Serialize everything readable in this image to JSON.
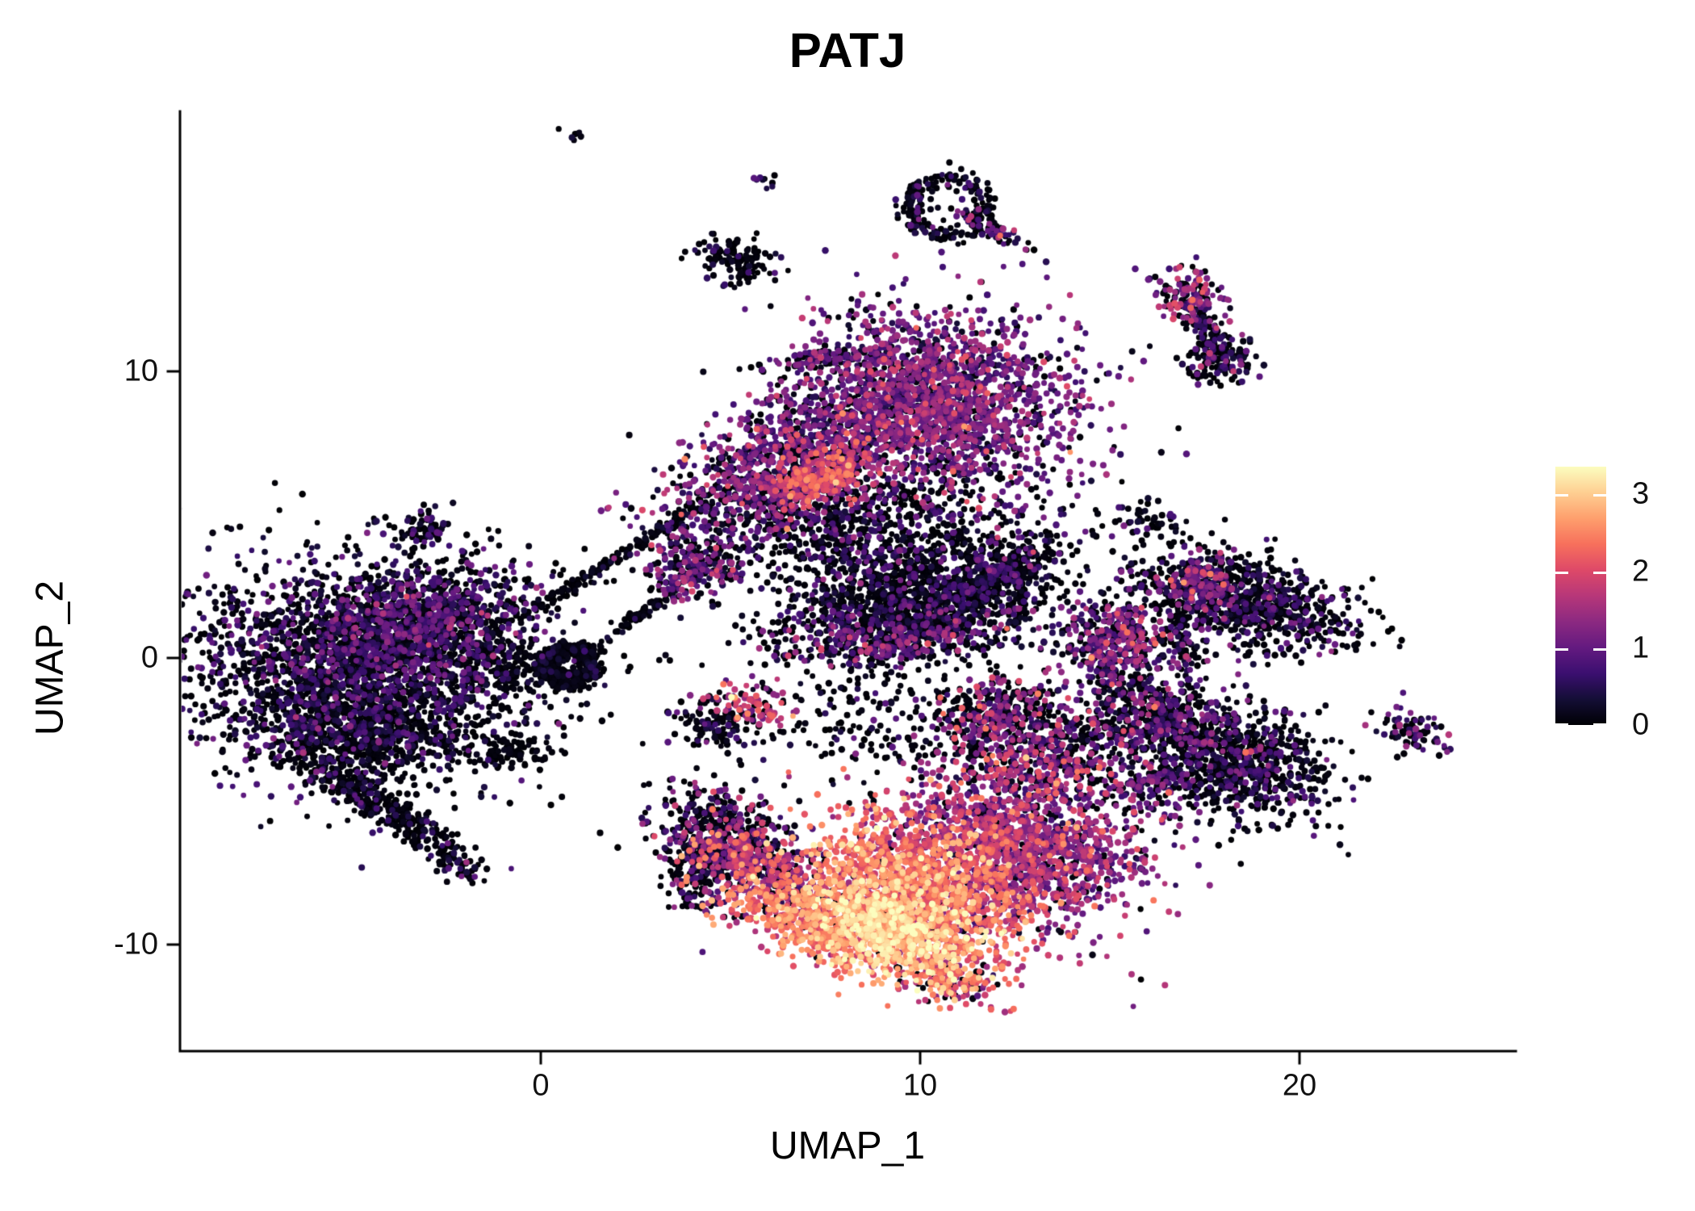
{
  "title": "PATJ",
  "chart_data": {
    "type": "scatter",
    "title": "PATJ",
    "xlabel": "UMAP_1",
    "ylabel": "UMAP_2",
    "x_range": [
      -9.5,
      25.7
    ],
    "y_range": [
      -13.7,
      19.1
    ],
    "x_ticks": [
      0,
      10,
      20
    ],
    "y_ticks": [
      -10,
      0,
      10
    ],
    "grid": false,
    "legend_position": "right",
    "point_radius_px": 3.8,
    "colorbar": {
      "label_values": [
        0,
        1,
        2,
        3
      ],
      "vmax": 3.36,
      "colormap": "magma",
      "stops": [
        "#000004",
        "#140e36",
        "#3b0f70",
        "#641a80",
        "#8c2981",
        "#b73779",
        "#de4968",
        "#f7705c",
        "#fe9f6d",
        "#fecf92",
        "#fcfdbf"
      ]
    },
    "clusters": [
      {
        "name": "left-main",
        "cx": -4.6,
        "cy": -0.3,
        "rx": 2.3,
        "ry": 1.75,
        "rot": -12,
        "n": 2500,
        "zero": 0.55,
        "mean": 0.5,
        "sd": 0.4
      },
      {
        "name": "left-upper",
        "cx": -3.3,
        "cy": 1.3,
        "rx": 1.5,
        "ry": 0.9,
        "rot": 15,
        "n": 800,
        "zero": 0.38,
        "mean": 0.65,
        "sd": 0.45
      },
      {
        "name": "left-lower-bulge",
        "cx": -4.8,
        "cy": -2.6,
        "rx": 1.4,
        "ry": 0.8,
        "rot": -10,
        "n": 550,
        "zero": 0.68,
        "mean": 0.3,
        "sd": 0.35
      },
      {
        "name": "left-tail",
        "cx": -4.4,
        "cy": -5.0,
        "rx": 1.5,
        "ry": 0.32,
        "rot": -40,
        "n": 340,
        "zero": 0.72,
        "mean": 0.3,
        "sd": 0.35
      },
      {
        "name": "left-tail-tip",
        "cx": -2.3,
        "cy": -7.2,
        "rx": 0.45,
        "ry": 0.25,
        "rot": -40,
        "n": 55,
        "zero": 0.6,
        "mean": 0.55,
        "sd": 0.5
      },
      {
        "name": "left-island-up",
        "cx": -3.1,
        "cy": 4.5,
        "rx": 0.42,
        "ry": 0.3,
        "rot": 20,
        "n": 70,
        "zero": 0.55,
        "mean": 0.5,
        "sd": 0.4
      },
      {
        "name": "ring-right",
        "shape": "ring",
        "cx": 0.75,
        "cy": -0.25,
        "ring_r": 0.6,
        "ring_sd": 0.16,
        "n": 400,
        "zero": 0.85,
        "mean": 0.15,
        "sd": 0.2
      },
      {
        "name": "bridge-dots",
        "cx": -0.7,
        "cy": -0.3,
        "rx": 0.6,
        "ry": 0.5,
        "rot": 0,
        "n": 150,
        "zero": 0.8,
        "mean": 0.2,
        "sd": 0.25
      },
      {
        "name": "island-below",
        "cx": -0.9,
        "cy": -3.3,
        "rx": 0.55,
        "ry": 0.26,
        "rot": 10,
        "n": 85,
        "zero": 0.85,
        "mean": 0.12,
        "sd": 0.15
      },
      {
        "name": "streak-upper",
        "cx": 1.3,
        "cy": 2.9,
        "rx": 1.7,
        "ry": 0.1,
        "rot": 39,
        "n": 140,
        "zero": 0.88,
        "mean": 0.15,
        "sd": 0.2
      },
      {
        "name": "streak-lower",
        "cx": 2.6,
        "cy": 1.5,
        "rx": 0.75,
        "ry": 0.1,
        "rot": 42,
        "n": 65,
        "zero": 0.88,
        "mean": 0.15,
        "sd": 0.2
      },
      {
        "name": "streak-join",
        "cx": 3.6,
        "cy": 4.9,
        "rx": 0.7,
        "ry": 0.12,
        "rot": 45,
        "n": 55,
        "zero": 0.8,
        "mean": 0.3,
        "sd": 0.3
      },
      {
        "name": "bridge-cluster",
        "cx": 3.9,
        "cy": 3.1,
        "rx": 0.65,
        "ry": 0.5,
        "rot": 20,
        "n": 220,
        "zero": 0.3,
        "mean": 0.9,
        "sd": 0.5
      },
      {
        "name": "top-main",
        "cx": 10.3,
        "cy": 8.9,
        "rx": 1.85,
        "ry": 1.55,
        "rot": -15,
        "n": 2100,
        "zero": 0.17,
        "mean": 1.05,
        "sd": 0.45
      },
      {
        "name": "top-left-lobe",
        "cx": 6.3,
        "cy": 6.6,
        "rx": 1.7,
        "ry": 1.0,
        "rot": 33,
        "n": 1000,
        "zero": 0.25,
        "mean": 1.0,
        "sd": 0.5
      },
      {
        "name": "top-pink-patch",
        "cx": 7.4,
        "cy": 6.3,
        "rx": 0.75,
        "ry": 0.45,
        "rot": 25,
        "n": 240,
        "zero": 0.08,
        "mean": 1.9,
        "sd": 0.4
      },
      {
        "name": "top-antenna",
        "cx": 7.4,
        "cy": 10.35,
        "rx": 0.8,
        "ry": 0.17,
        "rot": 3,
        "n": 100,
        "zero": 0.45,
        "mean": 0.75,
        "sd": 0.5
      },
      {
        "name": "top-under-scatter",
        "cx": 8.3,
        "cy": 4.7,
        "rx": 2.1,
        "ry": 1.0,
        "rot": 8,
        "n": 650,
        "zero": 0.55,
        "mean": 0.5,
        "sd": 0.45
      },
      {
        "name": "center-dark",
        "cx": 9.9,
        "cy": 2.2,
        "rx": 1.8,
        "ry": 1.05,
        "rot": 10,
        "n": 1400,
        "zero": 0.62,
        "mean": 0.38,
        "sd": 0.4
      },
      {
        "name": "center-wedge",
        "cx": 12.2,
        "cy": 3.0,
        "rx": 0.85,
        "ry": 0.4,
        "rot": 35,
        "n": 240,
        "zero": 0.6,
        "mean": 0.45,
        "sd": 0.4
      },
      {
        "name": "center-bottom-rim",
        "cx": 9.4,
        "cy": 0.7,
        "rx": 1.7,
        "ry": 0.45,
        "rot": 8,
        "n": 420,
        "zero": 0.32,
        "mean": 0.85,
        "sd": 0.5
      },
      {
        "name": "top-arc",
        "shape": "ring",
        "cx": 10.75,
        "cy": 15.75,
        "ring_r": 1.0,
        "ring_sd": 0.2,
        "n": 220,
        "zero": 0.7,
        "mean": 0.35,
        "sd": 0.4
      },
      {
        "name": "top-arc-tail",
        "cx": 12.0,
        "cy": 14.9,
        "rx": 0.7,
        "ry": 0.15,
        "rot": -33,
        "n": 65,
        "zero": 0.55,
        "mean": 0.7,
        "sd": 0.5
      },
      {
        "name": "island-5-14",
        "cx": 5.1,
        "cy": 13.9,
        "rx": 0.55,
        "ry": 0.38,
        "rot": -15,
        "n": 120,
        "zero": 0.72,
        "mean": 0.3,
        "sd": 0.35
      },
      {
        "name": "speck-top-a",
        "cx": 5.9,
        "cy": 16.7,
        "rx": 0.16,
        "ry": 0.2,
        "rot": 0,
        "n": 10,
        "zero": 0.5,
        "mean": 0.5,
        "sd": 0.4
      },
      {
        "name": "speck-top-b",
        "cx": 0.85,
        "cy": 18.3,
        "rx": 0.14,
        "ry": 0.14,
        "rot": 0,
        "n": 7,
        "zero": 0.6,
        "mean": 0.4,
        "sd": 0.3
      },
      {
        "name": "diag-island-top",
        "cx": 17.1,
        "cy": 12.6,
        "rx": 0.52,
        "ry": 0.45,
        "rot": -30,
        "n": 140,
        "zero": 0.28,
        "mean": 1.3,
        "sd": 0.5
      },
      {
        "name": "diag-island-mid",
        "cx": 17.6,
        "cy": 11.4,
        "rx": 0.7,
        "ry": 0.18,
        "rot": -58,
        "n": 100,
        "zero": 0.68,
        "mean": 0.4,
        "sd": 0.4
      },
      {
        "name": "diag-island-bottom",
        "cx": 17.9,
        "cy": 10.4,
        "rx": 0.48,
        "ry": 0.42,
        "rot": -30,
        "n": 130,
        "zero": 0.6,
        "mean": 0.55,
        "sd": 0.5
      },
      {
        "name": "right-top-cluster",
        "cx": 18.7,
        "cy": 1.9,
        "rx": 1.5,
        "ry": 0.8,
        "rot": -20,
        "n": 850,
        "zero": 0.58,
        "mean": 0.45,
        "sd": 0.45
      },
      {
        "name": "right-top-left-edge",
        "cx": 17.4,
        "cy": 2.6,
        "rx": 0.5,
        "ry": 0.55,
        "rot": 0,
        "n": 170,
        "zero": 0.3,
        "mean": 1.1,
        "sd": 0.5
      },
      {
        "name": "right-top-tail",
        "cx": 16.9,
        "cy": 0.3,
        "rx": 0.8,
        "ry": 0.25,
        "rot": -75,
        "n": 85,
        "zero": 0.55,
        "mean": 0.6,
        "sd": 0.4
      },
      {
        "name": "right-scatter-top",
        "cx": 16.0,
        "cy": 4.6,
        "rx": 0.6,
        "ry": 0.5,
        "rot": 0,
        "n": 55,
        "zero": 0.68,
        "mean": 0.4,
        "sd": 0.4
      },
      {
        "name": "mid-right-cluster",
        "cx": 15.2,
        "cy": 0.5,
        "rx": 0.7,
        "ry": 0.8,
        "rot": 0,
        "n": 400,
        "zero": 0.32,
        "mean": 1.0,
        "sd": 0.55
      },
      {
        "name": "mid-right-tail",
        "cx": 14.9,
        "cy": -0.9,
        "rx": 0.6,
        "ry": 0.22,
        "rot": -80,
        "n": 80,
        "zero": 0.5,
        "mean": 0.7,
        "sd": 0.4
      },
      {
        "name": "right-bottom-left-arm",
        "cx": 16.4,
        "cy": -1.7,
        "rx": 0.85,
        "ry": 0.4,
        "rot": -30,
        "n": 240,
        "zero": 0.52,
        "mean": 0.8,
        "sd": 0.55
      },
      {
        "name": "right-bottom-main",
        "cx": 18.3,
        "cy": -3.6,
        "rx": 1.25,
        "ry": 0.95,
        "rot": -25,
        "n": 850,
        "zero": 0.55,
        "mean": 0.55,
        "sd": 0.5
      },
      {
        "name": "right-bottom-left-tip",
        "cx": 16.2,
        "cy": -4.5,
        "rx": 0.5,
        "ry": 0.5,
        "rot": 0,
        "n": 130,
        "zero": 0.38,
        "mean": 0.9,
        "sd": 0.5
      },
      {
        "name": "far-right-island",
        "cx": 23.0,
        "cy": -2.6,
        "rx": 0.48,
        "ry": 0.3,
        "rot": -35,
        "n": 85,
        "zero": 0.5,
        "mean": 0.8,
        "sd": 0.5
      },
      {
        "name": "pink-archipelago",
        "cx": 13.3,
        "cy": -3.4,
        "rx": 1.45,
        "ry": 0.95,
        "rot": -25,
        "n": 650,
        "zero": 0.42,
        "mean": 1.1,
        "sd": 0.65
      },
      {
        "name": "bridge-band",
        "cx": 15.9,
        "cy": -2.6,
        "rx": 1.0,
        "ry": 0.33,
        "rot": -10,
        "n": 180,
        "zero": 0.55,
        "mean": 0.8,
        "sd": 0.5
      },
      {
        "name": "hook-above-bottom",
        "cx": 12.1,
        "cy": -1.9,
        "rx": 0.8,
        "ry": 0.5,
        "rot": 20,
        "n": 240,
        "zero": 0.48,
        "mean": 1.0,
        "sd": 0.6
      },
      {
        "name": "scatter-mid",
        "cx": 9.0,
        "cy": -2.2,
        "rx": 2.0,
        "ry": 1.1,
        "rot": 0,
        "n": 220,
        "zero": 0.72,
        "mean": 0.3,
        "sd": 0.4
      },
      {
        "name": "small-pink-left",
        "cx": 5.6,
        "cy": -1.6,
        "rx": 0.5,
        "ry": 0.38,
        "rot": -20,
        "n": 100,
        "zero": 0.22,
        "mean": 1.7,
        "sd": 0.5
      },
      {
        "name": "small-dark-left",
        "cx": 4.5,
        "cy": -2.4,
        "rx": 0.5,
        "ry": 0.45,
        "rot": 0,
        "n": 110,
        "zero": 0.7,
        "mean": 0.35,
        "sd": 0.35
      },
      {
        "name": "bottom-right-purple",
        "cx": 12.6,
        "cy": -6.7,
        "rx": 1.65,
        "ry": 1.25,
        "rot": -30,
        "n": 1500,
        "zero": 0.1,
        "mean": 1.35,
        "sd": 0.5
      },
      {
        "name": "bottom-mid-orange",
        "cx": 9.8,
        "cy": -8.0,
        "rx": 1.55,
        "ry": 1.15,
        "rot": -30,
        "n": 1400,
        "zero": 0.04,
        "mean": 2.2,
        "sd": 0.45
      },
      {
        "name": "bottom-core-bright",
        "cx": 9.2,
        "cy": -9.4,
        "rx": 1.15,
        "ry": 0.8,
        "rot": -30,
        "n": 850,
        "zero": 0.02,
        "mean": 2.85,
        "sd": 0.33
      },
      {
        "name": "bottom-left-arm-dark",
        "cx": 4.9,
        "cy": -6.1,
        "rx": 1.0,
        "ry": 0.7,
        "rot": -30,
        "n": 420,
        "zero": 0.55,
        "mean": 0.9,
        "sd": 0.6
      },
      {
        "name": "bottom-left-arm-mid",
        "cx": 5.7,
        "cy": -7.3,
        "rx": 1.0,
        "ry": 0.55,
        "rot": -30,
        "n": 400,
        "zero": 0.22,
        "mean": 1.5,
        "sd": 0.5
      },
      {
        "name": "bottom-left-edge",
        "cx": 4.15,
        "cy": -7.5,
        "rx": 0.45,
        "ry": 0.8,
        "rot": 0,
        "n": 180,
        "zero": 0.6,
        "mean": 0.6,
        "sd": 0.5
      },
      {
        "name": "bottom-lower-band",
        "cx": 6.9,
        "cy": -9.2,
        "rx": 1.25,
        "ry": 0.55,
        "rot": -30,
        "n": 450,
        "zero": 0.08,
        "mean": 2.3,
        "sd": 0.45
      },
      {
        "name": "bottom-tip",
        "cx": 10.8,
        "cy": -11.2,
        "rx": 0.7,
        "ry": 0.4,
        "rot": -25,
        "n": 180,
        "zero": 0.12,
        "mean": 2.0,
        "sd": 0.5
      }
    ]
  }
}
